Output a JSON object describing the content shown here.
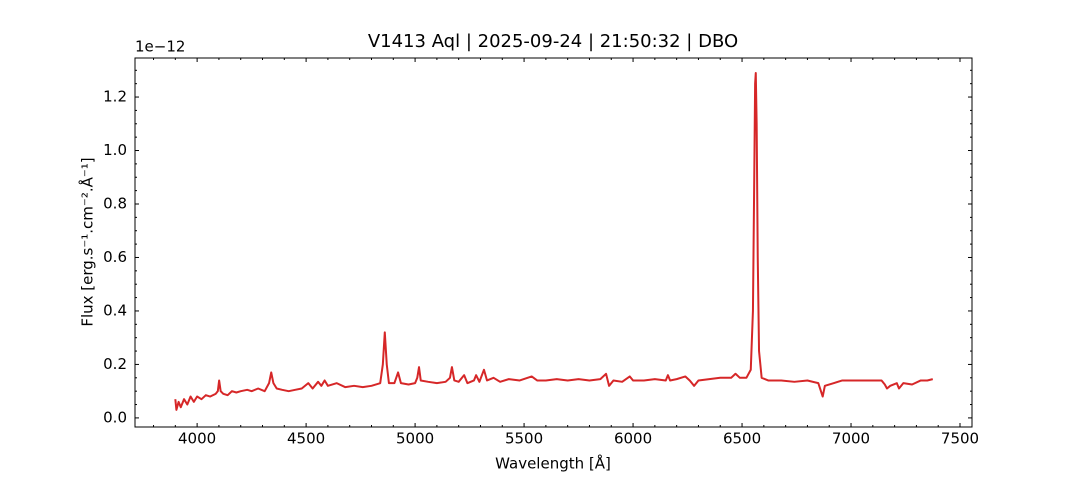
{
  "chart_data": {
    "type": "line",
    "title": "V1413 Aql | 2025-09-24 | 21:50:32 | DBO",
    "x_label": "Wavelength [Å]",
    "y_label": "Flux [erg.s⁻¹.cm⁻².Å⁻¹]",
    "y_offset": "1e−12",
    "xlim": [
      3715,
      7555
    ],
    "ylim": [
      -0.034,
      1.346
    ],
    "xticks": [
      4000,
      4500,
      5000,
      5500,
      6000,
      6500,
      7000,
      7500
    ],
    "yticks": [
      {
        "value": 0,
        "label": "0.0"
      },
      {
        "value": 0.2,
        "label": "0.2"
      },
      {
        "value": 0.4,
        "label": "0.4"
      },
      {
        "value": 0.6,
        "label": "0.6"
      },
      {
        "value": 0.8,
        "label": "0.8"
      },
      {
        "value": 1.0,
        "label": "1.0"
      },
      {
        "value": 1.2,
        "label": "1.2"
      }
    ],
    "grid": false,
    "x": [
      3900,
      3905,
      3915,
      3925,
      3940,
      3955,
      3970,
      3985,
      4000,
      4020,
      4040,
      4060,
      4085,
      4095,
      4101,
      4108,
      4120,
      4140,
      4160,
      4180,
      4200,
      4230,
      4250,
      4280,
      4310,
      4330,
      4340,
      4350,
      4365,
      4390,
      4420,
      4450,
      4480,
      4510,
      4530,
      4555,
      4570,
      4585,
      4600,
      4640,
      4680,
      4720,
      4760,
      4800,
      4840,
      4852,
      4861,
      4870,
      4880,
      4905,
      4922,
      4935,
      4970,
      5000,
      5010,
      5018,
      5026,
      5060,
      5100,
      5140,
      5160,
      5169,
      5180,
      5200,
      5225,
      5240,
      5270,
      5280,
      5295,
      5316,
      5330,
      5360,
      5390,
      5430,
      5480,
      5535,
      5560,
      5600,
      5650,
      5700,
      5750,
      5800,
      5850,
      5876,
      5890,
      5910,
      5950,
      5985,
      6000,
      6050,
      6100,
      6150,
      6160,
      6170,
      6200,
      6240,
      6260,
      6280,
      6300,
      6350,
      6400,
      6450,
      6470,
      6490,
      6520,
      6540,
      6550,
      6556,
      6560,
      6563,
      6567,
      6572,
      6578,
      6590,
      6620,
      6680,
      6740,
      6800,
      6850,
      6870,
      6880,
      6920,
      6960,
      7000,
      7050,
      7100,
      7140,
      7155,
      7165,
      7180,
      7210,
      7220,
      7240,
      7280,
      7320,
      7350,
      7375
    ],
    "series": [
      {
        "name": "V1413 Aql",
        "color": "#d62728",
        "values": [
          0.07,
          0.03,
          0.06,
          0.04,
          0.07,
          0.05,
          0.08,
          0.06,
          0.08,
          0.07,
          0.085,
          0.08,
          0.09,
          0.1,
          0.14,
          0.1,
          0.09,
          0.085,
          0.1,
          0.095,
          0.1,
          0.105,
          0.1,
          0.11,
          0.1,
          0.13,
          0.17,
          0.13,
          0.11,
          0.105,
          0.1,
          0.105,
          0.11,
          0.13,
          0.11,
          0.135,
          0.12,
          0.14,
          0.12,
          0.13,
          0.115,
          0.12,
          0.115,
          0.12,
          0.13,
          0.2,
          0.32,
          0.2,
          0.13,
          0.13,
          0.17,
          0.13,
          0.125,
          0.13,
          0.15,
          0.19,
          0.14,
          0.135,
          0.13,
          0.135,
          0.15,
          0.19,
          0.14,
          0.135,
          0.16,
          0.13,
          0.14,
          0.16,
          0.135,
          0.18,
          0.14,
          0.15,
          0.135,
          0.145,
          0.14,
          0.155,
          0.14,
          0.14,
          0.145,
          0.14,
          0.145,
          0.14,
          0.145,
          0.165,
          0.12,
          0.14,
          0.135,
          0.155,
          0.14,
          0.14,
          0.145,
          0.14,
          0.16,
          0.14,
          0.145,
          0.155,
          0.14,
          0.12,
          0.14,
          0.145,
          0.15,
          0.15,
          0.165,
          0.15,
          0.15,
          0.18,
          0.4,
          0.9,
          1.25,
          1.29,
          1.1,
          0.6,
          0.25,
          0.15,
          0.14,
          0.14,
          0.135,
          0.14,
          0.13,
          0.08,
          0.12,
          0.13,
          0.14,
          0.14,
          0.14,
          0.14,
          0.14,
          0.125,
          0.11,
          0.12,
          0.13,
          0.11,
          0.13,
          0.125,
          0.14,
          0.14,
          0.145
        ]
      }
    ]
  }
}
